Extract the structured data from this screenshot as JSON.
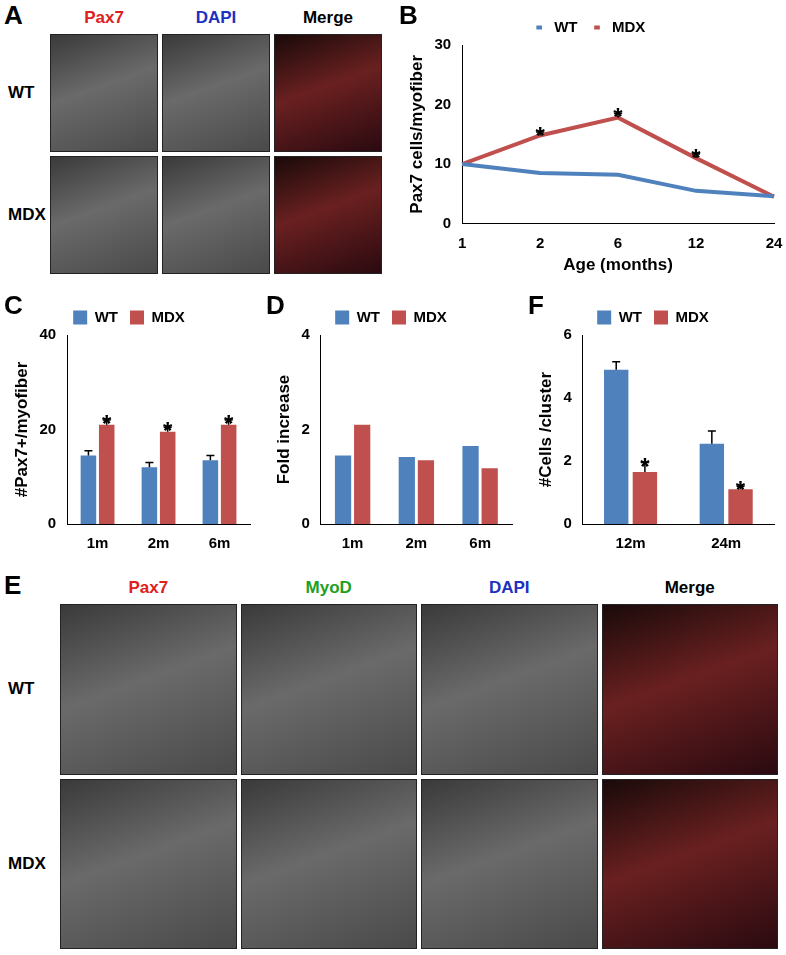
{
  "chart_data": [
    {
      "type": "line",
      "panel_label": "B",
      "x_label": "Age (months)",
      "y_label": "Pax7 cells/myofiber",
      "categories": [
        "1",
        "2",
        "6",
        "12",
        "24"
      ],
      "series": [
        {
          "name": "WT",
          "color": "#4f81bd",
          "values": [
            10,
            8.5,
            8.2,
            5.5,
            4.6
          ]
        },
        {
          "name": "MDX",
          "color": "#c0504d",
          "values": [
            10,
            14.8,
            17.8,
            11,
            4.5
          ],
          "errors": [
            0,
            0.6,
            0.7,
            0.7,
            0
          ]
        }
      ],
      "annotations": [
        {
          "series": "MDX",
          "category": "2",
          "text": "*"
        },
        {
          "series": "MDX",
          "category": "6",
          "text": "*"
        },
        {
          "series": "MDX",
          "category": "12",
          "text": "*"
        }
      ],
      "ylim": [
        0,
        30
      ],
      "yticks": [
        0,
        10,
        20,
        30
      ],
      "grid": false,
      "legend": "top",
      "marker": "none"
    },
    {
      "type": "bar",
      "panel_label": "C",
      "y_label": "#Pax7+/myofiber",
      "categories": [
        "1m",
        "2m",
        "6m"
      ],
      "series": [
        {
          "name": "WT",
          "color": "#4f81bd",
          "values": [
            14.5,
            12,
            13.5
          ],
          "errors": [
            1,
            1,
            1
          ]
        },
        {
          "name": "MDX",
          "color": "#c0504d",
          "values": [
            21,
            19.5,
            21
          ],
          "errors": [
            1,
            1,
            1
          ]
        }
      ],
      "annotations": [
        {
          "series": "MDX",
          "category": "1m",
          "text": "*"
        },
        {
          "series": "MDX",
          "category": "2m",
          "text": "*"
        },
        {
          "series": "MDX",
          "category": "6m",
          "text": "*"
        }
      ],
      "ylim": [
        0,
        40
      ],
      "yticks": [
        0,
        20,
        40
      ],
      "grid": false,
      "legend": "top"
    },
    {
      "type": "bar",
      "panel_label": "D",
      "y_label": "Fold increase",
      "categories": [
        "1m",
        "2m",
        "6m"
      ],
      "series": [
        {
          "name": "WT",
          "color": "#4f81bd",
          "values": [
            1.45,
            1.42,
            1.65
          ]
        },
        {
          "name": "MDX",
          "color": "#c0504d",
          "values": [
            2.1,
            1.35,
            1.18
          ]
        }
      ],
      "ylim": [
        0,
        4
      ],
      "yticks": [
        0,
        2,
        4
      ],
      "grid": false,
      "legend": "top"
    },
    {
      "type": "bar",
      "panel_label": "F",
      "y_label": "#Cells /cluster",
      "categories": [
        "12m",
        "24m"
      ],
      "series": [
        {
          "name": "WT",
          "color": "#4f81bd",
          "values": [
            4.9,
            2.55
          ],
          "errors": [
            0.25,
            0.4
          ]
        },
        {
          "name": "MDX",
          "color": "#c0504d",
          "values": [
            1.65,
            1.1
          ],
          "errors": [
            0.3,
            0.1
          ]
        }
      ],
      "annotations": [
        {
          "series": "MDX",
          "category": "12m",
          "text": "*"
        },
        {
          "series": "MDX",
          "category": "24m",
          "text": "*"
        }
      ],
      "ylim": [
        0,
        6
      ],
      "yticks": [
        0,
        2,
        4,
        6
      ],
      "grid": false,
      "legend": "top"
    }
  ],
  "image_panels": [
    {
      "panel_label": "A",
      "rows": [
        "WT",
        "MDX"
      ],
      "columns": [
        {
          "text": "Pax7",
          "color": "#e02020"
        },
        {
          "text": "DAPI",
          "color": "#2030c0"
        },
        {
          "text": "Merge",
          "color": "#000000"
        }
      ]
    },
    {
      "panel_label": "E",
      "rows": [
        "WT",
        "MDX"
      ],
      "columns": [
        {
          "text": "Pax7",
          "color": "#e02020"
        },
        {
          "text": "MyoD",
          "color": "#20a020"
        },
        {
          "text": "DAPI",
          "color": "#2030c0"
        },
        {
          "text": "Merge",
          "color": "#000000"
        }
      ]
    }
  ]
}
